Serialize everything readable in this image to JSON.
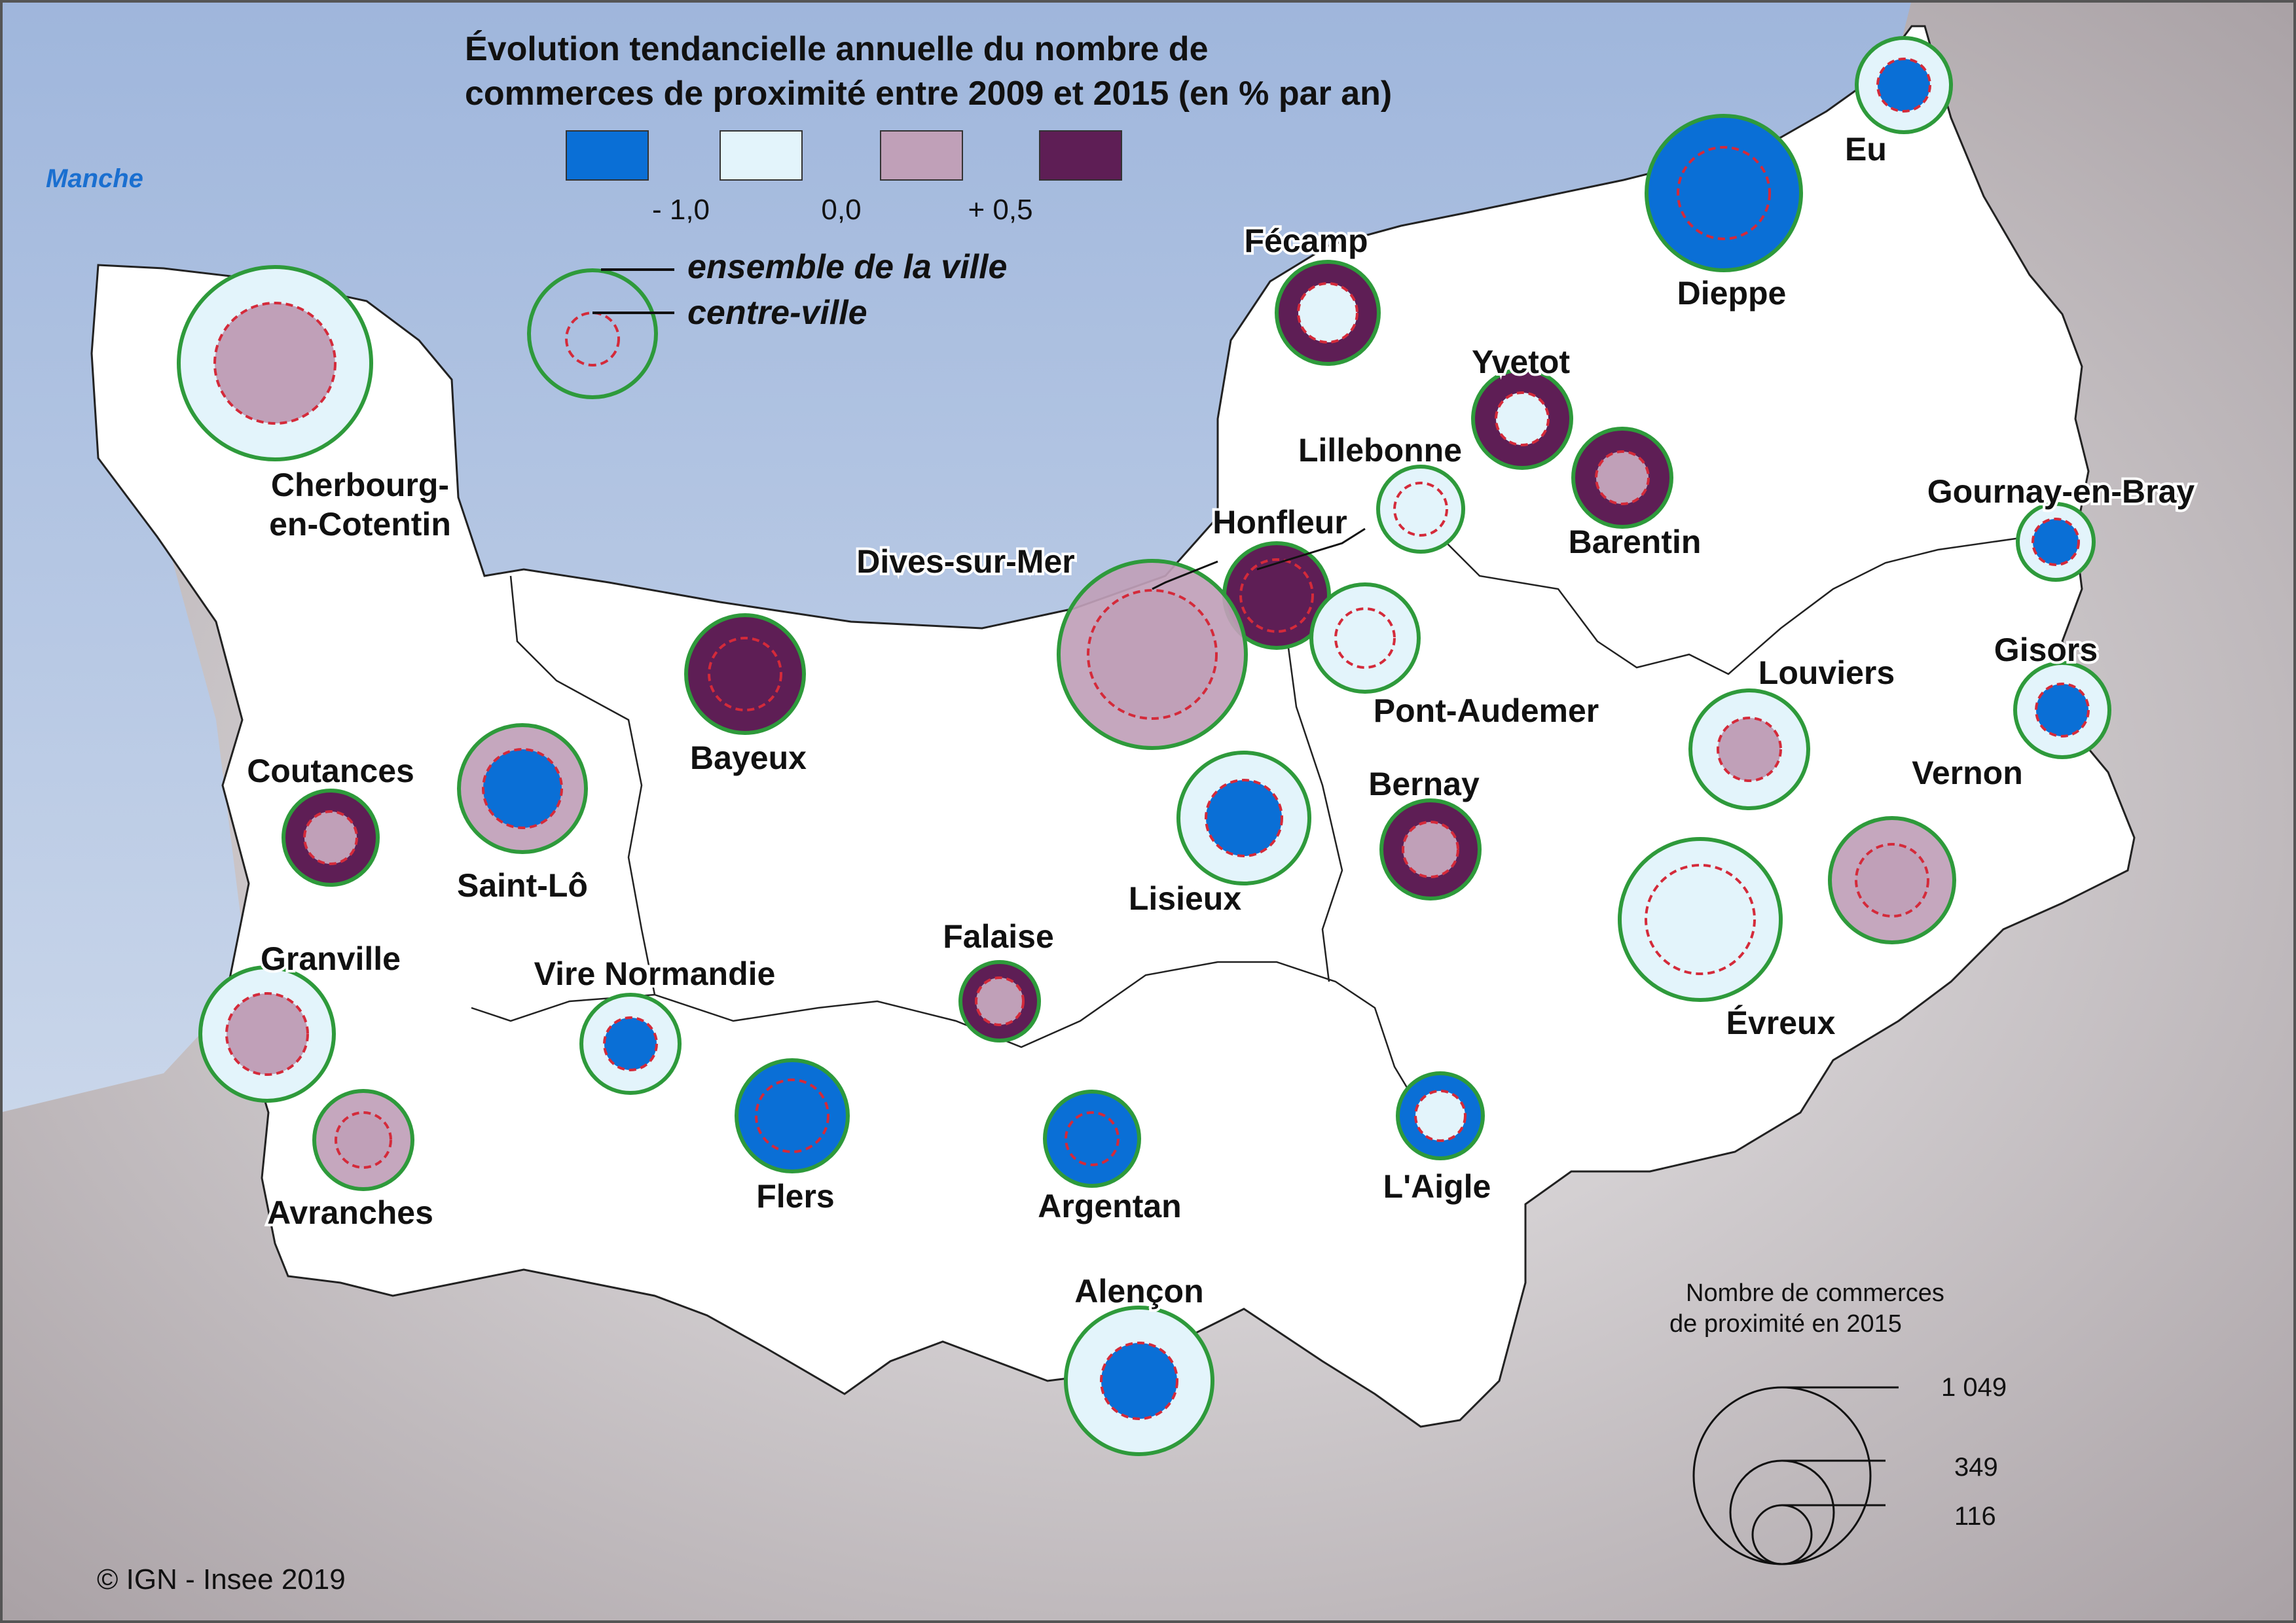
{
  "sea_label": "Manche",
  "legend": {
    "title_line1": "Évolution tendancielle annuelle du nombre de",
    "title_line2": "commerces de proximité entre 2009 et 2015 (en % par an)",
    "colors": [
      "#0a6fd6",
      "#e3f4fb",
      "#c0a0b8",
      "#5e1e55"
    ],
    "labels": [
      "- 1,0",
      "0,0",
      "+ 0,5"
    ],
    "ville_label": "ensemble de la ville",
    "centre_label": "centre-ville",
    "size_title_line1": "Nombre de commerces",
    "size_title_line2": "de proximité en 2015",
    "size_values": [
      "1 049",
      "349",
      "116"
    ]
  },
  "copyright": "© IGN - Insee 2019",
  "colors": {
    "sea": "#b9cbe4",
    "land": "#ffffff",
    "outside": "#c9c3c6",
    "ring": "#2e9a3b",
    "centre_ring": "#d42a3a"
  },
  "cities": [
    {
      "name": "Eu",
      "ville": "light",
      "centre": "blue"
    },
    {
      "name": "Dieppe",
      "ville": "blue",
      "centre": "blue"
    },
    {
      "name": "Fécamp",
      "ville": "purple",
      "centre": "light"
    },
    {
      "name": "Yvetot",
      "ville": "purple",
      "centre": "light"
    },
    {
      "name": "Lillebonne",
      "ville": "light",
      "centre": "light"
    },
    {
      "name": "Barentin",
      "ville": "purple",
      "centre": "pink"
    },
    {
      "name": "Cherbourg-",
      "name2": "en-Cotentin",
      "ville": "light",
      "centre": "pink"
    },
    {
      "name": "Honfleur",
      "ville": "purple",
      "centre": "purple"
    },
    {
      "name": "Dives-sur-Mer",
      "ville": "pink",
      "centre": "pink"
    },
    {
      "name": "Pont-Audemer",
      "ville": "light",
      "centre": "light"
    },
    {
      "name": "Gournay-en-Bray",
      "ville": "light",
      "centre": "blue"
    },
    {
      "name": "Gisors",
      "ville": "light",
      "centre": "blue"
    },
    {
      "name": "Bayeux",
      "ville": "purple",
      "centre": "purple"
    },
    {
      "name": "Louviers",
      "ville": "light",
      "centre": "pink"
    },
    {
      "name": "Coutances",
      "ville": "purple",
      "centre": "pink"
    },
    {
      "name": "Saint-Lô",
      "ville": "pink",
      "centre": "blue"
    },
    {
      "name": "Lisieux",
      "ville": "light",
      "centre": "blue"
    },
    {
      "name": "Bernay",
      "ville": "purple",
      "centre": "pink"
    },
    {
      "name": "Vernon",
      "ville": "pink",
      "centre": "pink"
    },
    {
      "name": "Évreux",
      "ville": "light",
      "centre": "light"
    },
    {
      "name": "Granville",
      "ville": "light",
      "centre": "pink"
    },
    {
      "name": "Vire Normandie",
      "ville": "light",
      "centre": "blue"
    },
    {
      "name": "Falaise",
      "ville": "purple",
      "centre": "pink"
    },
    {
      "name": "Avranches",
      "ville": "pink",
      "centre": "pink"
    },
    {
      "name": "Flers",
      "ville": "blue",
      "centre": "blue"
    },
    {
      "name": "Argentan",
      "ville": "blue",
      "centre": "blue"
    },
    {
      "name": "L'Aigle",
      "ville": "blue",
      "centre": "light"
    },
    {
      "name": "Alençon",
      "ville": "light",
      "centre": "blue"
    }
  ]
}
